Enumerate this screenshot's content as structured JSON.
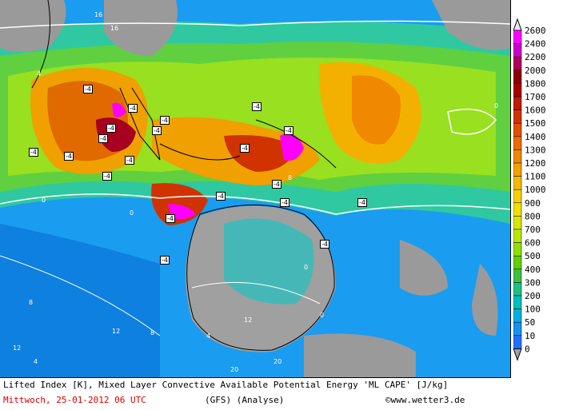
{
  "legend": {
    "labels": [
      "2600",
      "2400",
      "2200",
      "2000",
      "1800",
      "1700",
      "1600",
      "1500",
      "1400",
      "1300",
      "1200",
      "1100",
      "1000",
      "900",
      "800",
      "700",
      "600",
      "500",
      "400",
      "300",
      "200",
      "100",
      "50",
      "10",
      "0"
    ],
    "colors": [
      "#e8e8f8",
      "#ff00ff",
      "#cc00cc",
      "#b0005a",
      "#8b0000",
      "#a80000",
      "#c01a00",
      "#d03200",
      "#e05000",
      "#ec6a00",
      "#f08800",
      "#f4a000",
      "#f8b800",
      "#f8d000",
      "#f0e000",
      "#d8e800",
      "#b8e800",
      "#90e000",
      "#60d000",
      "#40c040",
      "#20c080",
      "#00c0c0",
      "#00b0e0",
      "#1890f0",
      "#2070ff"
    ]
  },
  "footer": {
    "line1": "Lifted Index [K], Mixed Layer Convective Available Potential Energy 'ML CAPE' [J/kg]",
    "date": "Mittwoch, 25-01-2012  06 UTC",
    "model": "(GFS)  (Analyse)",
    "copyright": "©www.wetter3.de"
  },
  "map_labels": {
    "li_negative": [
      "-4",
      "-4",
      "-4",
      "-4",
      "-4",
      "-4",
      "-4",
      "-4",
      "-4",
      "-4",
      "-4",
      "-4",
      "-4",
      "-4",
      "-4",
      "-4",
      "-4",
      "-4",
      "-4",
      "-4"
    ],
    "li_positive": [
      "0",
      "0",
      "0",
      "0",
      "0",
      "4",
      "4",
      "4",
      "8",
      "8",
      "8",
      "12",
      "12",
      "12",
      "16",
      "16",
      "20",
      "20"
    ]
  }
}
